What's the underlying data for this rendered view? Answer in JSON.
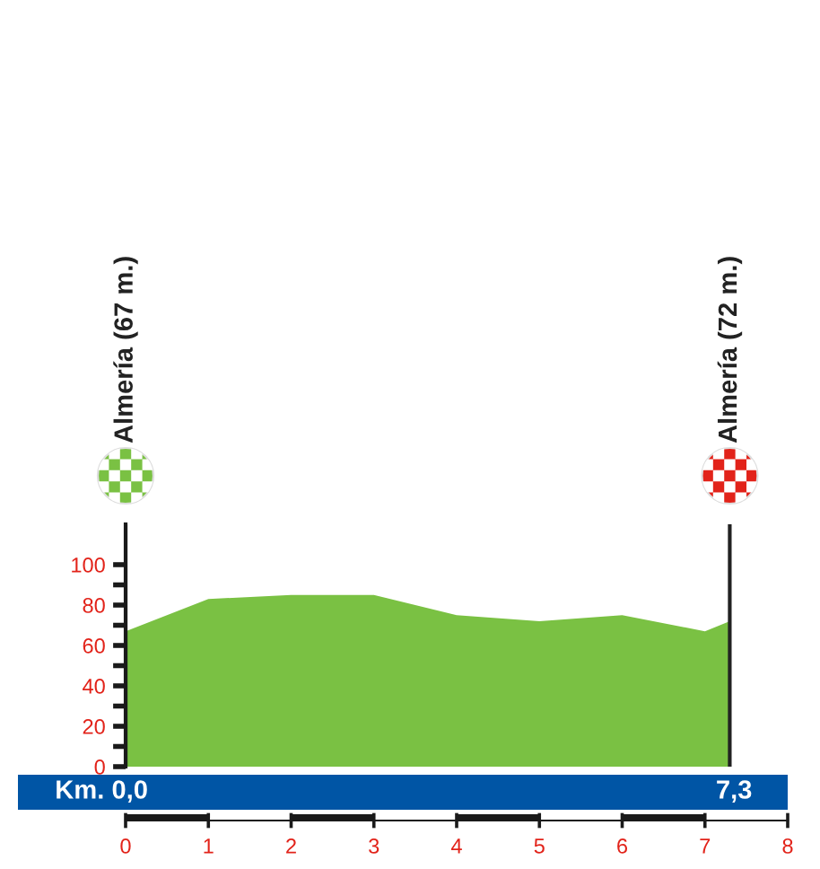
{
  "chart_data": {
    "type": "area",
    "x": [
      0,
      1,
      2,
      3,
      4,
      5,
      6,
      7,
      7.3
    ],
    "values": [
      67,
      83,
      85,
      85,
      75,
      72,
      75,
      67,
      72
    ],
    "color": "#7ac143",
    "xlim": [
      0,
      8
    ],
    "xticks": [
      0,
      1,
      2,
      3,
      4,
      5,
      6,
      7,
      8
    ],
    "ylim": [
      0,
      120
    ],
    "yticks": [
      0,
      {
        "value": 10,
        "label": null
      },
      20,
      {
        "value": 30,
        "label": null
      },
      40,
      {
        "value": 50,
        "label": null
      },
      60,
      {
        "value": 70,
        "label": null
      },
      80,
      {
        "value": 90,
        "label": null
      },
      100
    ],
    "ref_lines": [
      {
        "axis": "x",
        "value": 0,
        "color": "#222222"
      },
      {
        "axis": "x",
        "value": 7.3,
        "color": "#222222"
      }
    ],
    "annotations": [
      "Almería (67 m.)",
      "Almería (72 m.)",
      "Km. 0,0",
      "7,3"
    ],
    "grid": false,
    "legend": false
  }
}
